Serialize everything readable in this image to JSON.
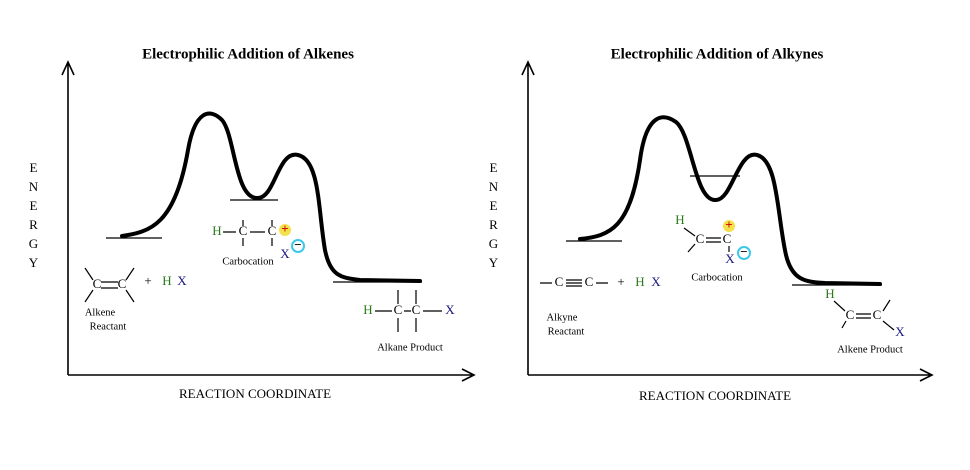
{
  "panels": [
    {
      "title": "Electrophilic Addition of Alkenes",
      "y_axis_label": "ENERGY",
      "x_axis_label": "REACTION COORDINATE",
      "reactant": {
        "label": [
          "Alkene",
          "Reactant"
        ],
        "atoms": [
          "C",
          "C"
        ],
        "reagent": [
          "+",
          "H",
          "X"
        ]
      },
      "intermediate": {
        "label": "Carbocation",
        "atoms": [
          "H",
          "C",
          "C",
          "X"
        ],
        "charges": [
          "+",
          "−"
        ]
      },
      "product": {
        "label": "Alkane Product",
        "atoms": [
          "H",
          "C",
          "C",
          "X"
        ]
      }
    },
    {
      "title": "Electrophilic Addition of Alkynes",
      "y_axis_label": "ENERGY",
      "x_axis_label": "REACTION COORDINATE",
      "reactant": {
        "label": [
          "Alkyne",
          "Reactant"
        ],
        "atoms": [
          "C",
          "C"
        ],
        "reagent": [
          "+",
          "H",
          "X"
        ]
      },
      "intermediate": {
        "label": "Carbocation",
        "atoms": [
          "H",
          "C",
          "C",
          "X"
        ],
        "charges": [
          "+",
          "−"
        ]
      },
      "product": {
        "label": "Alkene Product",
        "atoms": [
          "H",
          "C",
          "C",
          "X"
        ]
      }
    }
  ]
}
